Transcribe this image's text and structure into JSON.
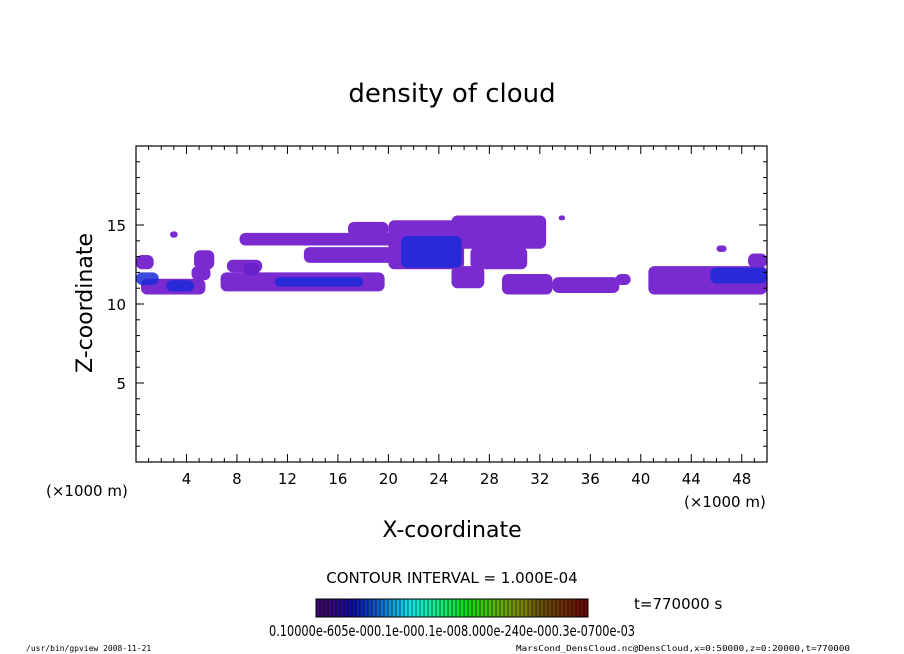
{
  "chart_data": {
    "type": "heatmap",
    "title": "density of cloud",
    "xlabel": "X-coordinate",
    "ylabel": "Z-coordinate",
    "x_unit_label": "(×1000 m)",
    "xlim": [
      0,
      50
    ],
    "ylim": [
      0,
      20
    ],
    "x_ticks": [
      4,
      8,
      12,
      16,
      20,
      24,
      28,
      32,
      36,
      40,
      44,
      48
    ],
    "y_ticks": [
      5,
      10,
      15
    ],
    "contour_interval": "CONTOUR INTERVAL = 1.000E-04",
    "time_label": "t=770000 s",
    "colorbar_labels": "0.10000e-605e-000.1e-000.1e-008.000e-240e-000.3e-0700e-03",
    "footer_left": "/usr/bin/gpview  2008-11-21",
    "footer_right": "MarsCond_DensCloud.nc@DensCloud,x=0:50000,z=0:20000,t=770000",
    "colors": {
      "low": "#7a2bd0",
      "mid": "#6a20c8",
      "high": "#1a2ad8"
    },
    "cloud_regions": [
      {
        "x": [
          0.0,
          1.8
        ],
        "z": [
          11.2,
          12.0
        ],
        "level": "high"
      },
      {
        "x": [
          0.0,
          1.4
        ],
        "z": [
          12.2,
          13.1
        ],
        "level": "low"
      },
      {
        "x": [
          0.4,
          5.5
        ],
        "z": [
          10.6,
          11.6
        ],
        "level": "low"
      },
      {
        "x": [
          2.4,
          4.6
        ],
        "z": [
          10.8,
          11.5
        ],
        "level": "high"
      },
      {
        "x": [
          4.4,
          5.9
        ],
        "z": [
          11.5,
          12.4
        ],
        "level": "low"
      },
      {
        "x": [
          4.6,
          6.2
        ],
        "z": [
          12.2,
          13.4
        ],
        "level": "low"
      },
      {
        "x": [
          7.2,
          10.0
        ],
        "z": [
          12.0,
          12.8
        ],
        "level": "low"
      },
      {
        "x": [
          6.7,
          19.7
        ],
        "z": [
          10.8,
          12.0
        ],
        "level": "low"
      },
      {
        "x": [
          11.0,
          18.0
        ],
        "z": [
          11.1,
          11.7
        ],
        "level": "high"
      },
      {
        "x": [
          8.5,
          9.8
        ],
        "z": [
          11.8,
          12.6
        ],
        "level": "mid"
      },
      {
        "x": [
          8.2,
          21.0
        ],
        "z": [
          13.7,
          14.5
        ],
        "level": "low"
      },
      {
        "x": [
          13.3,
          20.5
        ],
        "z": [
          12.6,
          13.6
        ],
        "level": "low"
      },
      {
        "x": [
          16.8,
          20.0
        ],
        "z": [
          14.3,
          15.2
        ],
        "level": "low"
      },
      {
        "x": [
          20.0,
          26.0
        ],
        "z": [
          12.2,
          15.3
        ],
        "level": "low"
      },
      {
        "x": [
          21.0,
          25.8
        ],
        "z": [
          12.3,
          14.3
        ],
        "level": "high"
      },
      {
        "x": [
          25.0,
          27.6
        ],
        "z": [
          11.0,
          12.4
        ],
        "level": "low"
      },
      {
        "x": [
          25.0,
          32.5
        ],
        "z": [
          13.5,
          15.6
        ],
        "level": "low"
      },
      {
        "x": [
          26.5,
          31.0
        ],
        "z": [
          12.2,
          13.6
        ],
        "level": "low"
      },
      {
        "x": [
          29.0,
          33.0
        ],
        "z": [
          10.6,
          11.9
        ],
        "level": "low"
      },
      {
        "x": [
          33.0,
          38.3
        ],
        "z": [
          10.7,
          11.7
        ],
        "level": "low"
      },
      {
        "x": [
          38.0,
          39.2
        ],
        "z": [
          11.2,
          11.9
        ],
        "level": "low"
      },
      {
        "x": [
          40.6,
          50.0
        ],
        "z": [
          10.6,
          12.4
        ],
        "level": "low"
      },
      {
        "x": [
          45.5,
          50.0
        ],
        "z": [
          11.3,
          12.3
        ],
        "level": "high"
      },
      {
        "x": [
          48.5,
          50.0
        ],
        "z": [
          12.3,
          13.2
        ],
        "level": "low"
      },
      {
        "x": [
          46.0,
          46.8
        ],
        "z": [
          13.3,
          13.7
        ],
        "level": "low"
      },
      {
        "x": [
          33.5,
          34.0
        ],
        "z": [
          15.3,
          15.6
        ],
        "level": "low"
      },
      {
        "x": [
          2.7,
          3.3
        ],
        "z": [
          14.2,
          14.6
        ],
        "level": "low"
      }
    ]
  }
}
